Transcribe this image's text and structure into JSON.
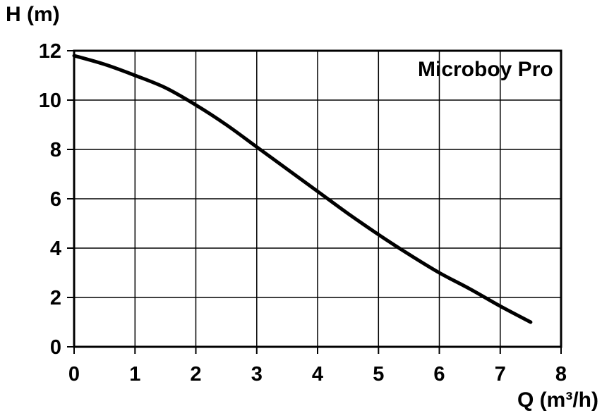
{
  "page": {
    "background": "#ffffff"
  },
  "chart_data": {
    "type": "line",
    "title": "",
    "annotation": "Microboy Pro",
    "xlabel": "Q (m³/h)",
    "ylabel": "H (m)",
    "xlim": [
      0,
      8
    ],
    "ylim": [
      0,
      12
    ],
    "x_ticks": [
      0,
      1,
      2,
      3,
      4,
      5,
      6,
      7,
      8
    ],
    "y_ticks": [
      0,
      2,
      4,
      6,
      8,
      10,
      12
    ],
    "grid": true,
    "legend_position": "none",
    "line_color": "#000000",
    "grid_color": "#000000",
    "border_color": "#000000",
    "series": [
      {
        "name": "Microboy Pro",
        "x": [
          0,
          0.5,
          1,
          1.5,
          2,
          2.5,
          3,
          3.5,
          4,
          4.5,
          5,
          5.5,
          6,
          6.5,
          7,
          7.5
        ],
        "y": [
          11.8,
          11.45,
          11.0,
          10.5,
          9.8,
          9.0,
          8.1,
          7.2,
          6.3,
          5.4,
          4.55,
          3.75,
          3.0,
          2.35,
          1.65,
          1.0
        ]
      }
    ]
  }
}
